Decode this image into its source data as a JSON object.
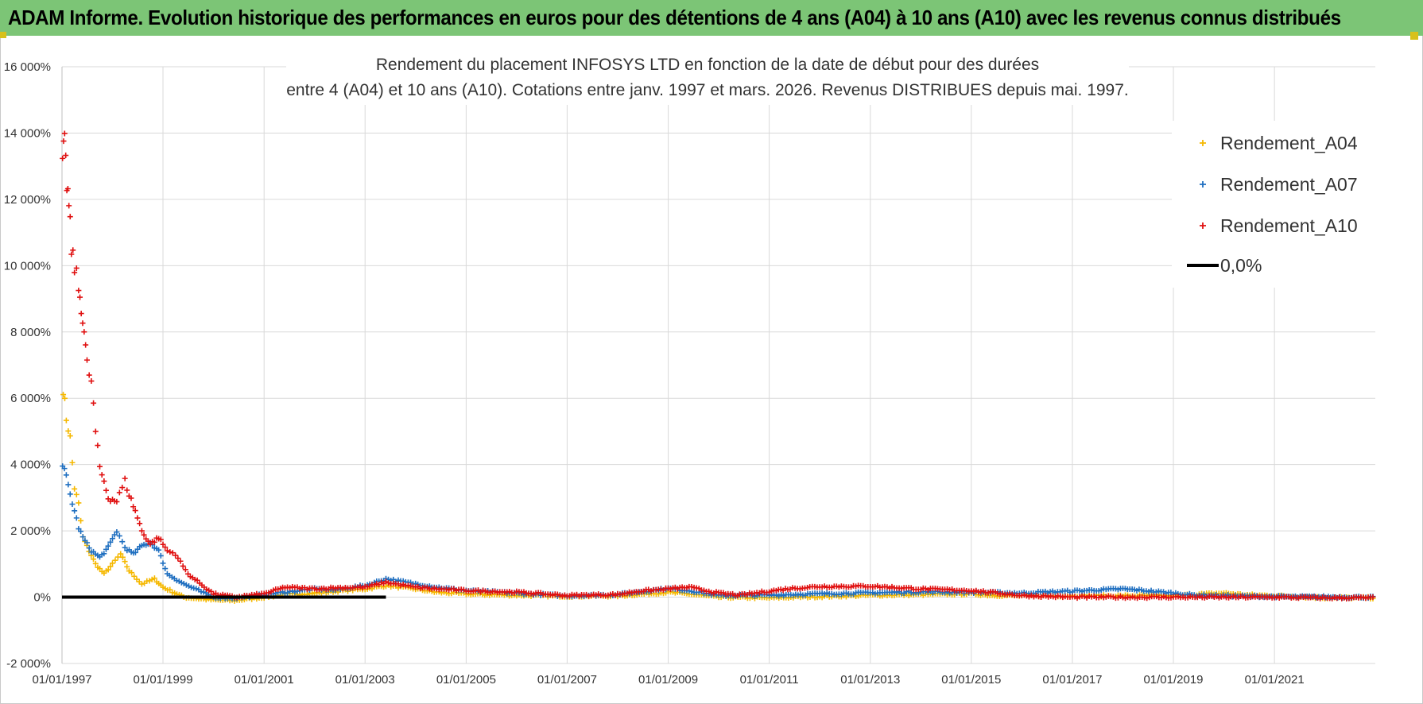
{
  "header": {
    "title": "ADAM Informe. Evolution historique des performances en euros pour des détentions de 4 ans (A04) à 10 ans (A10) avec les revenus connus distribués"
  },
  "colors": {
    "banner": "#7cc576",
    "A04": "#f5b800",
    "A07": "#1f6fc0",
    "A10": "#e01010",
    "zero": "#000000",
    "grid": "#d9d9d9"
  },
  "chart_data": {
    "type": "scatter",
    "title_lines": [
      "Rendement du placement INFOSYS LTD en fonction de la date de début pour des durées",
      "entre 4 (A04) et 10 ans (A10).  Cotations entre janv. 1997 et mars. 2026.  Revenus DISTRIBUES depuis mai. 1997."
    ],
    "x_ticks": [
      "01/01/1997",
      "01/01/1999",
      "01/01/2001",
      "01/01/2003",
      "01/01/2005",
      "01/01/2007",
      "01/01/2009",
      "01/01/2011",
      "01/01/2013",
      "01/01/2015",
      "01/01/2017",
      "01/01/2019",
      "01/01/2021"
    ],
    "y_ticks": [
      "-2 000%",
      "0%",
      "2 000%",
      "4 000%",
      "6 000%",
      "8 000%",
      "10 000%",
      "12 000%",
      "14 000%",
      "16 000%"
    ],
    "ylim": [
      -2000,
      16000
    ],
    "xlim": [
      "1997-01-01",
      "2022-12-31"
    ],
    "grid": true,
    "legend_position": "top-right",
    "series": [
      {
        "name": "Rendement_A04",
        "marker": "+",
        "points": [
          [
            "1997-01-10",
            6300
          ],
          [
            "1997-02-01",
            5400
          ],
          [
            "1997-03-01",
            4800
          ],
          [
            "1997-04-01",
            3300
          ],
          [
            "1997-05-01",
            2800
          ],
          [
            "1997-06-01",
            1800
          ],
          [
            "1997-07-15",
            1400
          ],
          [
            "1997-09-01",
            1000
          ],
          [
            "1997-11-01",
            700
          ],
          [
            "1998-01-01",
            1000
          ],
          [
            "1998-03-01",
            1300
          ],
          [
            "1998-05-01",
            800
          ],
          [
            "1998-08-01",
            400
          ],
          [
            "1998-11-01",
            550
          ],
          [
            "1999-01-01",
            300
          ],
          [
            "1999-06-01",
            0
          ],
          [
            "2000-01-01",
            -80
          ],
          [
            "2000-06-01",
            -100
          ],
          [
            "2001-01-01",
            0
          ],
          [
            "2001-06-01",
            80
          ],
          [
            "2002-01-01",
            120
          ],
          [
            "2002-06-01",
            180
          ],
          [
            "2003-01-01",
            250
          ],
          [
            "2003-06-01",
            350
          ],
          [
            "2004-01-01",
            250
          ],
          [
            "2004-06-01",
            150
          ],
          [
            "2005-01-01",
            100
          ],
          [
            "2005-06-01",
            80
          ],
          [
            "2006-01-01",
            60
          ],
          [
            "2007-01-01",
            30
          ],
          [
            "2008-01-01",
            40
          ],
          [
            "2009-01-01",
            150
          ],
          [
            "2009-06-01",
            100
          ],
          [
            "2010-01-01",
            0
          ],
          [
            "2011-01-01",
            -20
          ],
          [
            "2012-01-01",
            20
          ],
          [
            "2013-01-01",
            60
          ],
          [
            "2014-01-01",
            80
          ],
          [
            "2015-01-01",
            100
          ],
          [
            "2015-06-01",
            60
          ],
          [
            "2016-01-01",
            40
          ],
          [
            "2017-01-01",
            40
          ],
          [
            "2018-01-01",
            40
          ],
          [
            "2019-01-01",
            40
          ],
          [
            "2019-06-01",
            80
          ],
          [
            "2020-01-01",
            120
          ],
          [
            "2020-06-01",
            70
          ],
          [
            "2021-01-01",
            40
          ],
          [
            "2022-01-01",
            -20
          ],
          [
            "2022-12-31",
            -20
          ]
        ]
      },
      {
        "name": "Rendement_A07",
        "marker": "+",
        "points": [
          [
            "1997-01-05",
            4000
          ],
          [
            "1997-02-01",
            3600
          ],
          [
            "1997-03-01",
            3100
          ],
          [
            "1997-04-01",
            2600
          ],
          [
            "1997-05-01",
            2100
          ],
          [
            "1997-06-01",
            1800
          ],
          [
            "1997-08-01",
            1400
          ],
          [
            "1997-10-01",
            1200
          ],
          [
            "1997-12-01",
            1500
          ],
          [
            "1998-02-01",
            2000
          ],
          [
            "1998-04-01",
            1500
          ],
          [
            "1998-06-01",
            1300
          ],
          [
            "1998-08-01",
            1550
          ],
          [
            "1998-10-01",
            1650
          ],
          [
            "1998-12-01",
            1400
          ],
          [
            "1999-02-01",
            700
          ],
          [
            "1999-06-01",
            400
          ],
          [
            "2000-01-01",
            0
          ],
          [
            "2000-06-01",
            -30
          ],
          [
            "2001-01-01",
            80
          ],
          [
            "2001-06-01",
            150
          ],
          [
            "2002-01-01",
            250
          ],
          [
            "2002-06-01",
            220
          ],
          [
            "2003-01-01",
            350
          ],
          [
            "2003-06-01",
            550
          ],
          [
            "2004-01-01",
            400
          ],
          [
            "2004-06-01",
            300
          ],
          [
            "2005-01-01",
            200
          ],
          [
            "2006-01-01",
            120
          ],
          [
            "2007-01-01",
            40
          ],
          [
            "2008-01-01",
            80
          ],
          [
            "2009-01-01",
            260
          ],
          [
            "2009-06-01",
            200
          ],
          [
            "2010-01-01",
            50
          ],
          [
            "2011-01-01",
            60
          ],
          [
            "2012-01-01",
            100
          ],
          [
            "2013-01-01",
            130
          ],
          [
            "2014-01-01",
            160
          ],
          [
            "2015-01-01",
            150
          ],
          [
            "2016-01-01",
            120
          ],
          [
            "2016-06-01",
            150
          ],
          [
            "2017-01-01",
            180
          ],
          [
            "2018-01-01",
            250
          ],
          [
            "2018-06-01",
            200
          ],
          [
            "2019-01-01",
            120
          ],
          [
            "2019-06-01",
            60
          ],
          [
            "2020-06-01",
            30
          ],
          [
            "2021-06-01",
            10
          ],
          [
            "2022-12-31",
            0
          ]
        ]
      },
      {
        "name": "Rendement_A10",
        "marker": "+",
        "points": [
          [
            "1997-01-05",
            13200
          ],
          [
            "1997-01-20",
            13600
          ],
          [
            "1997-02-05",
            12500
          ],
          [
            "1997-02-20",
            11800
          ],
          [
            "1997-03-10",
            10500
          ],
          [
            "1997-04-01",
            10000
          ],
          [
            "1997-05-01",
            9300
          ],
          [
            "1997-05-20",
            8800
          ],
          [
            "1997-06-10",
            8000
          ],
          [
            "1997-07-01",
            7000
          ],
          [
            "1997-08-01",
            6500
          ],
          [
            "1997-09-01",
            5000
          ],
          [
            "1997-10-01",
            3900
          ],
          [
            "1997-11-01",
            3500
          ],
          [
            "1997-12-01",
            3000
          ],
          [
            "1998-02-01",
            2900
          ],
          [
            "1998-04-01",
            3500
          ],
          [
            "1998-05-01",
            3100
          ],
          [
            "1998-06-15",
            2600
          ],
          [
            "1998-08-01",
            2000
          ],
          [
            "1998-10-01",
            1600
          ],
          [
            "1998-12-01",
            1800
          ],
          [
            "1999-02-01",
            1400
          ],
          [
            "1999-04-01",
            1300
          ],
          [
            "1999-07-01",
            700
          ],
          [
            "2000-01-01",
            100
          ],
          [
            "2000-06-01",
            0
          ],
          [
            "2001-01-01",
            100
          ],
          [
            "2001-06-01",
            300
          ],
          [
            "2002-01-01",
            250
          ],
          [
            "2002-06-01",
            280
          ],
          [
            "2003-01-01",
            300
          ],
          [
            "2003-06-01",
            450
          ],
          [
            "2004-01-01",
            300
          ],
          [
            "2004-06-01",
            250
          ],
          [
            "2005-01-01",
            200
          ],
          [
            "2006-01-01",
            150
          ],
          [
            "2007-01-01",
            50
          ],
          [
            "2008-01-01",
            80
          ],
          [
            "2008-06-01",
            180
          ],
          [
            "2009-01-01",
            250
          ],
          [
            "2009-06-01",
            300
          ],
          [
            "2010-01-01",
            120
          ],
          [
            "2010-06-01",
            60
          ],
          [
            "2011-01-01",
            180
          ],
          [
            "2011-06-01",
            260
          ],
          [
            "2012-01-01",
            320
          ],
          [
            "2013-01-01",
            330
          ],
          [
            "2014-01-01",
            250
          ],
          [
            "2015-01-01",
            200
          ],
          [
            "2016-01-01",
            50
          ],
          [
            "2017-01-01",
            0
          ],
          [
            "2018-01-01",
            0
          ],
          [
            "2019-01-01",
            0
          ],
          [
            "2020-01-01",
            0
          ],
          [
            "2021-01-01",
            0
          ],
          [
            "2022-01-01",
            -20
          ],
          [
            "2022-12-31",
            -20
          ]
        ]
      },
      {
        "name": "0,0%",
        "marker": "line",
        "points": [
          [
            "1997-01-01",
            0
          ],
          [
            "2003-06-01",
            0
          ]
        ]
      }
    ]
  }
}
